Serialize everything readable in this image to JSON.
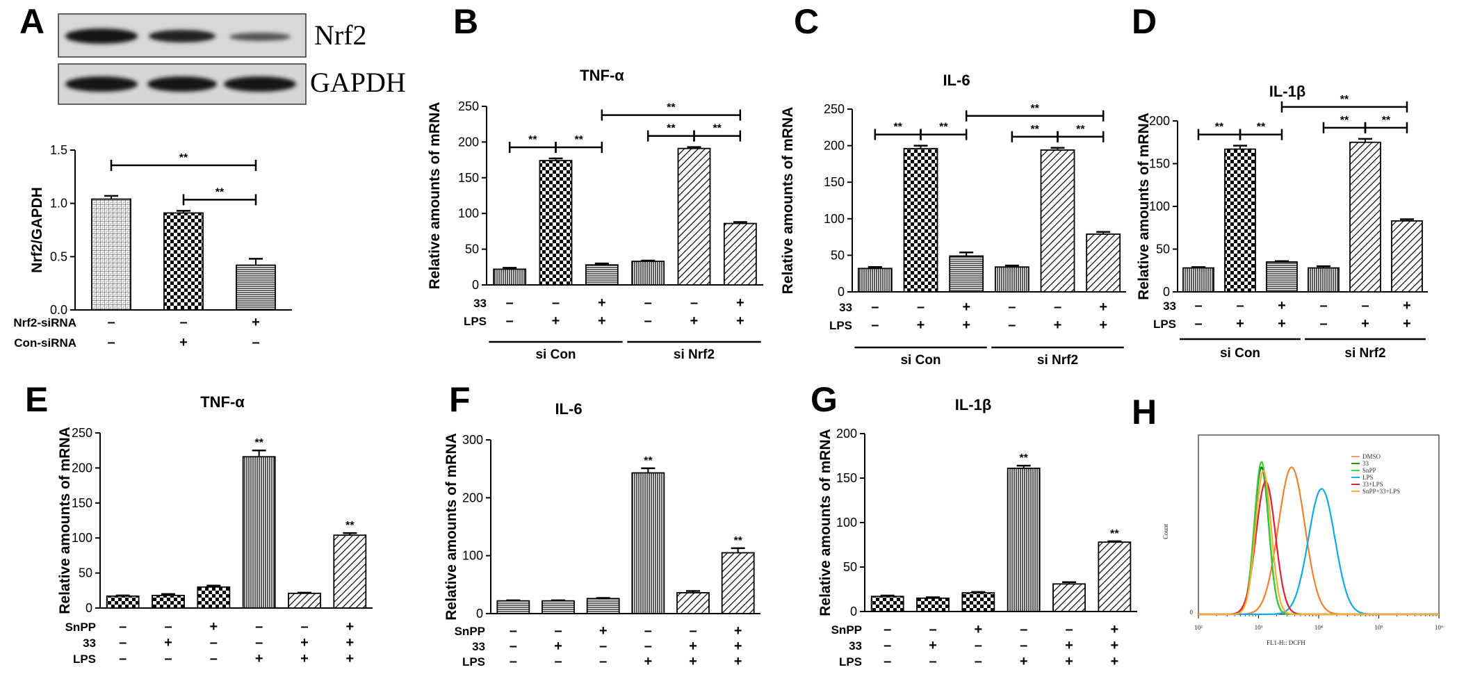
{
  "chart_data": [
    {
      "panel": "A",
      "type": "bar",
      "blot_labels": [
        "Nrf2",
        "GAPDH"
      ],
      "ylabel": "Nrf2/GAPDH",
      "ylim": [
        0,
        1.5
      ],
      "yticks": [
        "0.0",
        "0.5",
        "1.0",
        "1.5"
      ],
      "values": [
        1.04,
        0.91,
        0.42
      ],
      "errors": [
        0.03,
        0.02,
        0.06
      ],
      "patterns": [
        "grid",
        "check",
        "hlines"
      ],
      "conditions": [
        {
          "name": "Nrf2-siRNA",
          "signs": [
            "–",
            "–",
            "+"
          ]
        },
        {
          "name": "Con-siRNA",
          "signs": [
            "–",
            "+",
            "–"
          ]
        }
      ],
      "sig_brackets": [
        {
          "from": 0,
          "to": 2,
          "label": "**"
        },
        {
          "from": 1,
          "to": 2,
          "label": "**"
        }
      ],
      "top_labels": [
        "",
        "",
        ""
      ],
      "groups": []
    },
    {
      "panel": "B",
      "type": "bar",
      "title": "TNF-α",
      "ylabel": "Relative amounts of mRNA",
      "ylim": [
        0,
        250
      ],
      "yticks": [
        "0",
        "50",
        "100",
        "150",
        "200",
        "250"
      ],
      "values": [
        22,
        174,
        28,
        33,
        191,
        86
      ],
      "errors": [
        2,
        3,
        2,
        1,
        2,
        2
      ],
      "patterns": [
        "vlines",
        "check",
        "hlines",
        "vlines",
        "diag",
        "diag"
      ],
      "conditions": [
        {
          "name": "33",
          "signs": [
            "–",
            "–",
            "+",
            "–",
            "–",
            "+"
          ]
        },
        {
          "name": "LPS",
          "signs": [
            "–",
            "+",
            "+",
            "–",
            "+",
            "+"
          ]
        }
      ],
      "sig_brackets": [
        {
          "from": 0,
          "to": 1,
          "label": "**"
        },
        {
          "from": 1,
          "to": 2,
          "label": "**"
        },
        {
          "from": 3,
          "to": 4,
          "label": "**"
        },
        {
          "from": 4,
          "to": 5,
          "label": "**"
        },
        {
          "from": 2,
          "to": 5,
          "label": "**"
        }
      ],
      "top_labels": [
        "",
        "",
        "",
        "",
        "",
        ""
      ],
      "groups": [
        {
          "label": "si Con",
          "from": 0,
          "to": 2
        },
        {
          "label": "si Nrf2",
          "from": 3,
          "to": 5
        }
      ]
    },
    {
      "panel": "C",
      "type": "bar",
      "title": "IL-6",
      "ylabel": "Relative amounts of mRNA",
      "ylim": [
        0,
        250
      ],
      "yticks": [
        "0",
        "50",
        "100",
        "150",
        "200",
        "250"
      ],
      "values": [
        32,
        196,
        49,
        34,
        194,
        79
      ],
      "errors": [
        2,
        4,
        5,
        2,
        3,
        3
      ],
      "patterns": [
        "vlines",
        "check",
        "hlines",
        "vlines",
        "diag",
        "diag"
      ],
      "conditions": [
        {
          "name": "33",
          "signs": [
            "–",
            "–",
            "+",
            "–",
            "–",
            "+"
          ]
        },
        {
          "name": "LPS",
          "signs": [
            "–",
            "+",
            "+",
            "–",
            "+",
            "+"
          ]
        }
      ],
      "sig_brackets": [
        {
          "from": 0,
          "to": 1,
          "label": "**"
        },
        {
          "from": 1,
          "to": 2,
          "label": "**"
        },
        {
          "from": 3,
          "to": 4,
          "label": "**"
        },
        {
          "from": 4,
          "to": 5,
          "label": "**"
        },
        {
          "from": 2,
          "to": 5,
          "label": "**"
        }
      ],
      "top_labels": [
        "",
        "",
        "",
        "",
        "",
        ""
      ],
      "groups": [
        {
          "label": "si Con",
          "from": 0,
          "to": 2
        },
        {
          "label": "si Nrf2",
          "from": 3,
          "to": 5
        }
      ]
    },
    {
      "panel": "D",
      "type": "bar",
      "title": "IL-1β",
      "ylabel": "Relative amounts of mRNA",
      "ylim": [
        0,
        200
      ],
      "yticks": [
        "0",
        "50",
        "100",
        "150",
        "200"
      ],
      "values": [
        28,
        167,
        35,
        28,
        175,
        83
      ],
      "errors": [
        1,
        4,
        1,
        2,
        4,
        2
      ],
      "patterns": [
        "vlines",
        "check",
        "hlines",
        "vlines",
        "diag",
        "diag"
      ],
      "conditions": [
        {
          "name": "33",
          "signs": [
            "–",
            "–",
            "+",
            "–",
            "–",
            "+"
          ]
        },
        {
          "name": "LPS",
          "signs": [
            "–",
            "+",
            "+",
            "–",
            "+",
            "+"
          ]
        }
      ],
      "sig_brackets": [
        {
          "from": 0,
          "to": 1,
          "label": "**"
        },
        {
          "from": 1,
          "to": 2,
          "label": "**"
        },
        {
          "from": 3,
          "to": 4,
          "label": "**"
        },
        {
          "from": 4,
          "to": 5,
          "label": "**"
        },
        {
          "from": 2,
          "to": 5,
          "label": "**"
        }
      ],
      "top_labels": [
        "",
        "",
        "",
        "",
        "",
        ""
      ],
      "groups": [
        {
          "label": "si Con",
          "from": 0,
          "to": 2
        },
        {
          "label": "si Nrf2",
          "from": 3,
          "to": 5
        }
      ]
    },
    {
      "panel": "E",
      "type": "bar",
      "title": "TNF-α",
      "ylabel": "Relative amounts of mRNA",
      "ylim": [
        0,
        250
      ],
      "yticks": [
        "0",
        "50",
        "100",
        "150",
        "200",
        "250"
      ],
      "values": [
        17,
        18,
        30,
        216,
        21,
        104
      ],
      "errors": [
        1,
        2,
        2,
        9,
        1,
        3
      ],
      "patterns": [
        "check",
        "check",
        "check",
        "vlines",
        "diag",
        "diag"
      ],
      "conditions": [
        {
          "name": "SnPP",
          "signs": [
            "–",
            "–",
            "+",
            "–",
            "–",
            "+"
          ]
        },
        {
          "name": "33",
          "signs": [
            "–",
            "+",
            "–",
            "–",
            "+",
            "+"
          ]
        },
        {
          "name": "LPS",
          "signs": [
            "–",
            "–",
            "–",
            "+",
            "+",
            "+"
          ]
        }
      ],
      "sig_brackets": [],
      "top_labels": [
        "",
        "",
        "",
        "**",
        "",
        "**"
      ],
      "groups": []
    },
    {
      "panel": "F",
      "type": "bar",
      "title": "IL-6",
      "ylabel": "Relative amounts of mRNA",
      "ylim": [
        0,
        300
      ],
      "yticks": [
        "0",
        "100",
        "200",
        "300"
      ],
      "values": [
        22,
        22,
        26,
        243,
        36,
        105
      ],
      "errors": [
        1,
        1,
        1,
        8,
        3,
        8
      ],
      "patterns": [
        "hlines",
        "hlines",
        "hlines",
        "vlines",
        "diag",
        "diag"
      ],
      "conditions": [
        {
          "name": "SnPP",
          "signs": [
            "–",
            "–",
            "+",
            "–",
            "–",
            "+"
          ]
        },
        {
          "name": "33",
          "signs": [
            "–",
            "+",
            "–",
            "–",
            "+",
            "+"
          ]
        },
        {
          "name": "LPS",
          "signs": [
            "–",
            "–",
            "–",
            "+",
            "+",
            "+"
          ]
        }
      ],
      "sig_brackets": [],
      "top_labels": [
        "",
        "",
        "",
        "**",
        "",
        "**"
      ],
      "groups": []
    },
    {
      "panel": "G",
      "type": "bar",
      "title": "IL-1β",
      "ylabel": "Relative amounts of mRNA",
      "ylim": [
        0,
        200
      ],
      "yticks": [
        "0",
        "50",
        "100",
        "150",
        "200"
      ],
      "values": [
        17,
        15,
        21,
        161,
        31,
        78
      ],
      "errors": [
        1,
        1,
        1,
        3,
        2,
        1
      ],
      "patterns": [
        "check",
        "check",
        "check",
        "vlines",
        "diag",
        "diag"
      ],
      "conditions": [
        {
          "name": "SnPP",
          "signs": [
            "–",
            "–",
            "+",
            "–",
            "–",
            "+"
          ]
        },
        {
          "name": "33",
          "signs": [
            "–",
            "+",
            "–",
            "–",
            "+",
            "+"
          ]
        },
        {
          "name": "LPS",
          "signs": [
            "–",
            "–",
            "–",
            "+",
            "+",
            "+"
          ]
        }
      ],
      "sig_brackets": [],
      "top_labels": [
        "",
        "",
        "",
        "**",
        "",
        "**"
      ],
      "groups": []
    }
  ],
  "flow_panel": {
    "panel": "H",
    "type": "histogram",
    "ylabel": "Count",
    "xlabel": "FL1-H:: DCFH",
    "xticks": [
      "10²",
      "10³",
      "10⁴",
      "10⁵",
      "10⁶"
    ],
    "ytick_zero": "0",
    "legend": [
      {
        "name": "DMSO",
        "color": "#f5a060"
      },
      {
        "name": "33",
        "color": "#228b22"
      },
      {
        "name": "SnPP",
        "color": "#44d444"
      },
      {
        "name": "LPS",
        "color": "#1cb0e8"
      },
      {
        "name": "33+LPS",
        "color": "#e0202a"
      },
      {
        "name": "SnPP+33+LPS",
        "color": "#f0b030"
      }
    ],
    "curves": [
      {
        "name": "DMSO",
        "peak_log": 3.55,
        "width": 0.22,
        "peak": 0.82,
        "color": "#f08030"
      },
      {
        "name": "33",
        "peak_log": 3.05,
        "width": 0.12,
        "peak": 0.82,
        "color": "#1a6e1a"
      },
      {
        "name": "SnPP",
        "peak_log": 3.05,
        "width": 0.12,
        "peak": 0.85,
        "color": "#3ccc3c"
      },
      {
        "name": "LPS",
        "peak_log": 4.05,
        "width": 0.22,
        "peak": 0.7,
        "color": "#10a8e8"
      },
      {
        "name": "33+LPS",
        "peak_log": 3.12,
        "width": 0.16,
        "peak": 0.74,
        "color": "#e02030"
      },
      {
        "name": "SnPP+33+LPS",
        "peak_log": 3.08,
        "width": 0.13,
        "peak": 0.8,
        "color": "#f5b030"
      }
    ]
  }
}
